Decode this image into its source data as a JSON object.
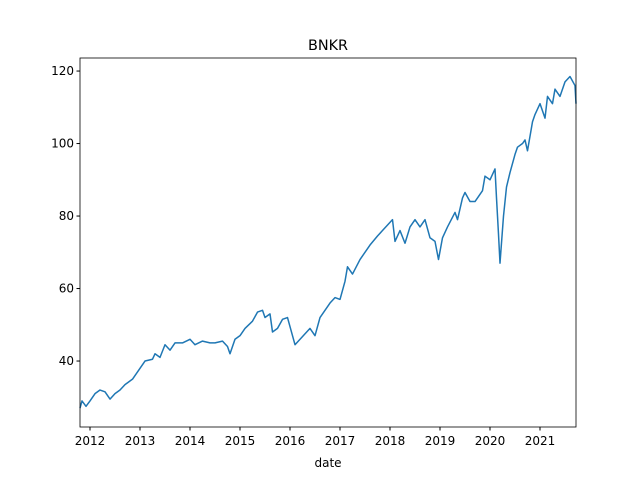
{
  "chart_data": {
    "type": "line",
    "title": "BNKR",
    "x_label": "date",
    "x": [
      2011.8,
      2011.84,
      2011.92,
      2012.0,
      2012.1,
      2012.2,
      2012.3,
      2012.4,
      2012.5,
      2012.6,
      2012.7,
      2012.85,
      2013.0,
      2013.1,
      2013.25,
      2013.3,
      2013.4,
      2013.5,
      2013.6,
      2013.7,
      2013.85,
      2014.0,
      2014.1,
      2014.25,
      2014.4,
      2014.5,
      2014.65,
      2014.75,
      2014.8,
      2014.9,
      2015.0,
      2015.1,
      2015.25,
      2015.35,
      2015.45,
      2015.5,
      2015.6,
      2015.65,
      2015.75,
      2015.85,
      2015.95,
      2016.05,
      2016.1,
      2016.4,
      2016.5,
      2016.6,
      2016.8,
      2016.9,
      2017.0,
      2017.1,
      2017.15,
      2017.25,
      2017.4,
      2017.6,
      2017.75,
      2017.85,
      2018.05,
      2018.1,
      2018.2,
      2018.3,
      2018.4,
      2018.5,
      2018.6,
      2018.7,
      2018.8,
      2018.9,
      2018.97,
      2019.05,
      2019.15,
      2019.3,
      2019.35,
      2019.45,
      2019.5,
      2019.6,
      2019.7,
      2019.85,
      2019.9,
      2020.0,
      2020.1,
      2020.13,
      2020.17,
      2020.2,
      2020.27,
      2020.33,
      2020.4,
      2020.5,
      2020.55,
      2020.65,
      2020.7,
      2020.75,
      2020.85,
      2020.9,
      2021.0,
      2021.1,
      2021.15,
      2021.25,
      2021.3,
      2021.4,
      2021.5,
      2021.6,
      2021.7,
      2021.72
    ],
    "series": [
      {
        "name": "BNKR",
        "color": "#1f77b4",
        "values": [
          27,
          29,
          27.5,
          29,
          31,
          32,
          31.5,
          29.5,
          31,
          32,
          33.5,
          35,
          38,
          40,
          40.5,
          42,
          41,
          44.5,
          43,
          45,
          45,
          46,
          44.5,
          45.5,
          45,
          45,
          45.5,
          44,
          42,
          46,
          47,
          49,
          51,
          53.5,
          54,
          52,
          53,
          48,
          49,
          51.5,
          52,
          47,
          44.5,
          49,
          47,
          52,
          56,
          57.5,
          57,
          62,
          66,
          64,
          68,
          72,
          74.5,
          76,
          79,
          73,
          76,
          72.5,
          77,
          79,
          77,
          79,
          74,
          73,
          68,
          74,
          77,
          81,
          79,
          85,
          86.5,
          84,
          84,
          87,
          91,
          90,
          93,
          85,
          75,
          67,
          80,
          88,
          92,
          97,
          99,
          100,
          101,
          98,
          106,
          108,
          111,
          107,
          113,
          111,
          115,
          113,
          117,
          118.5,
          116,
          111
        ]
      }
    ],
    "xlim": [
      2011.8,
      2021.72
    ],
    "xticks": [
      2012,
      2013,
      2014,
      2015,
      2016,
      2017,
      2018,
      2019,
      2020,
      2021
    ],
    "ylim": [
      21.8,
      123.6
    ],
    "yticks": [
      40,
      60,
      80,
      100,
      120
    ]
  }
}
